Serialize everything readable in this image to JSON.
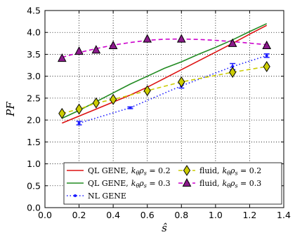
{
  "chart_data": {
    "type": "line",
    "xlabel": "ŝ",
    "ylabel": "PF",
    "xlim": [
      0.0,
      1.4
    ],
    "ylim": [
      0.0,
      4.5
    ],
    "xticks": [
      "0.0",
      "0.2",
      "0.4",
      "0.6",
      "0.8",
      "1.0",
      "1.2",
      "1.4"
    ],
    "yticks": [
      "0.0",
      "0.5",
      "1.0",
      "1.5",
      "2.0",
      "2.5",
      "3.0",
      "3.5",
      "4.0",
      "4.5"
    ],
    "grid": true,
    "legend_placement": "lower-right",
    "series": [
      {
        "key": "ql02",
        "name": "QL GENE, kθρs = 0.2",
        "legend_main": "QL GENE,",
        "color": "#dd1111",
        "style": "solid",
        "marker": "none",
        "x": [
          0.1,
          0.2,
          0.3,
          0.4,
          0.5,
          0.6,
          0.7,
          0.8,
          0.9,
          1.0,
          1.1,
          1.2,
          1.3
        ],
        "y": [
          1.93,
          2.09,
          2.25,
          2.41,
          2.57,
          2.75,
          2.95,
          3.15,
          3.35,
          3.55,
          3.75,
          3.96,
          4.16
        ]
      },
      {
        "key": "ql03",
        "name": "QL GENE, kθρs = 0.3",
        "legend_main": "QL GENE,",
        "color": "#228b22",
        "style": "solid",
        "marker": "none",
        "x": [
          0.1,
          0.2,
          0.3,
          0.4,
          0.5,
          0.6,
          0.7,
          0.8,
          0.9,
          1.0,
          1.1,
          1.2,
          1.3
        ],
        "y": [
          2.04,
          2.22,
          2.42,
          2.62,
          2.82,
          3.0,
          3.18,
          3.33,
          3.5,
          3.66,
          3.83,
          4.02,
          4.2
        ]
      },
      {
        "key": "nl",
        "name": "NL GENE",
        "legend_main": "NL GENE",
        "color": "#1a1aff",
        "style": "dotted",
        "marker": "errorbar",
        "x": [
          0.2,
          0.5,
          0.8,
          1.1,
          1.3
        ],
        "y": [
          1.93,
          2.28,
          2.78,
          3.22,
          3.47
        ],
        "err": [
          0.04,
          0.02,
          0.05,
          0.07,
          0.04
        ]
      },
      {
        "key": "fl02",
        "name": "fluid, kθρs = 0.2",
        "legend_main": "fluid,",
        "color": "#cccc00",
        "style": "dashed",
        "marker": "diamond",
        "x": [
          0.1,
          0.2,
          0.3,
          0.4,
          0.6,
          0.8,
          1.1,
          1.3
        ],
        "y": [
          2.15,
          2.25,
          2.39,
          2.47,
          2.67,
          2.87,
          3.09,
          3.22
        ]
      },
      {
        "key": "fl03",
        "name": "fluid, kθρs = 0.3",
        "legend_main": "fluid,",
        "color": "#cc00cc",
        "style": "dashed",
        "marker": "triangle",
        "x": [
          0.1,
          0.2,
          0.3,
          0.4,
          0.6,
          0.8,
          1.1,
          1.3
        ],
        "y": [
          3.41,
          3.57,
          3.6,
          3.7,
          3.85,
          3.85,
          3.75,
          3.7
        ]
      }
    ],
    "curve_fit": {
      "fl03": [
        3.43,
        3.54,
        3.63,
        3.71,
        3.77,
        3.82,
        3.845,
        3.85,
        3.84,
        3.82,
        3.79,
        3.755,
        3.72
      ]
    },
    "legend_layout": [
      [
        "ql02",
        "fl02"
      ],
      [
        "ql03",
        "fl03"
      ],
      [
        "nl"
      ]
    ],
    "legend_suffix_02": "0.2",
    "legend_suffix_03": "0.3"
  }
}
